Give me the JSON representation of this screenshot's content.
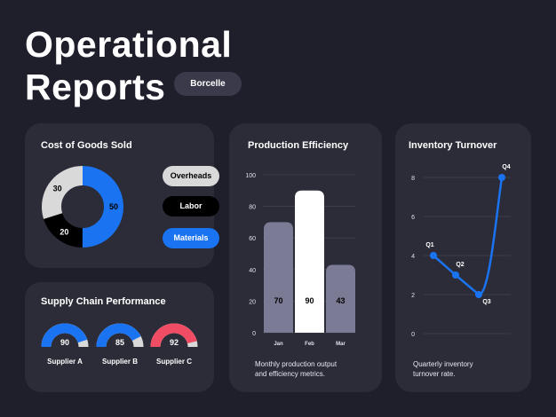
{
  "header": {
    "title_line1": "Operational",
    "title_line2": "Reports",
    "badge": "Borcelle"
  },
  "cogs": {
    "title": "Cost of Goods Sold",
    "legend": [
      "Overheads",
      "Labor",
      "Materials"
    ]
  },
  "supply": {
    "title": "Supply Chain Performance",
    "gauges": [
      {
        "label": "Supplier A",
        "value": 90,
        "color": "#1a73f0"
      },
      {
        "label": "Supplier B",
        "value": 85,
        "color": "#1a73f0"
      },
      {
        "label": "Supplier C",
        "value": 92,
        "color": "#f04c64"
      }
    ]
  },
  "production": {
    "title": "Production Efficiency",
    "description_line1": "Monthly production output",
    "description_line2": "and efficiency metrics."
  },
  "inventory": {
    "title": "Inventory Turnover",
    "description_line1": "Quarterly inventory",
    "description_line2": "turnover rate."
  },
  "colors": {
    "background": "#1f1f2b",
    "card": "#2b2c38",
    "blue": "#1a73f0",
    "red": "#f04c64"
  },
  "chart_data": [
    {
      "type": "pie",
      "title": "Cost of Goods Sold",
      "categories": [
        "Overheads",
        "Labor",
        "Materials"
      ],
      "values": [
        30,
        20,
        50
      ],
      "colors": [
        "#d9d9d9",
        "#000000",
        "#1a73f0"
      ]
    },
    {
      "type": "bar",
      "title": "Production Efficiency",
      "categories": [
        "Jan",
        "Feb",
        "Mar"
      ],
      "values": [
        70,
        90,
        43
      ],
      "ylim": [
        0,
        100
      ],
      "yticks": [
        0,
        20,
        40,
        60,
        80,
        100
      ],
      "colors": [
        "#7b7b96",
        "#ffffff",
        "#7b7b96"
      ],
      "grid": true
    },
    {
      "type": "line",
      "title": "Inventory Turnover",
      "categories": [
        "Q1",
        "Q2",
        "Q3",
        "Q4"
      ],
      "values": [
        4,
        3,
        2,
        8
      ],
      "ylim": [
        0,
        8
      ],
      "yticks": [
        0,
        2,
        4,
        6,
        8
      ],
      "color": "#1a73f0",
      "grid": true
    }
  ]
}
